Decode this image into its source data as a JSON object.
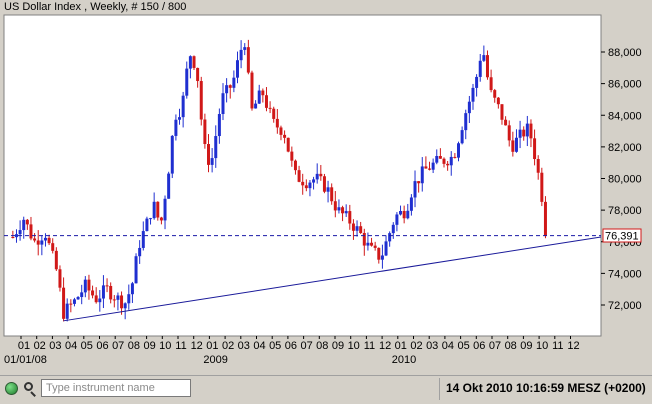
{
  "window": {
    "title": "US Dollar Index , Weekly, # 150 / 800"
  },
  "statusbar": {
    "search_placeholder": "Type instrument name",
    "datetime": "14 Okt 2010 10:16:59  MESZ (+0200)"
  },
  "colors": {
    "up_candle": "#1f2fd0",
    "down_candle": "#d01818",
    "trendline": "#1a1a9a",
    "current_price_line": "#1a1aa8",
    "current_price_label_border": "#d01818",
    "background": "#ffffff",
    "frame": "#d4d0c8"
  },
  "chart_data": {
    "type": "candlestick",
    "instrument": "US Dollar Index",
    "timeframe": "Weekly",
    "ylim": [
      70.5,
      89.5
    ],
    "y_ticks": [
      "72,000",
      "74,000",
      "76,000",
      "78,000",
      "80,000",
      "82,000",
      "84,000",
      "86,000",
      "88,000"
    ],
    "y_tick_values": [
      72,
      74,
      76,
      78,
      80,
      82,
      84,
      86,
      88
    ],
    "x_month_labels": [
      "01",
      "02",
      "03",
      "04",
      "05",
      "06",
      "07",
      "08",
      "09",
      "10",
      "11",
      "12",
      "01",
      "02",
      "03",
      "04",
      "05",
      "06",
      "07",
      "08",
      "09",
      "10",
      "11",
      "12",
      "01",
      "02",
      "03",
      "04",
      "05",
      "06",
      "07",
      "08",
      "09",
      "10",
      "11",
      "12"
    ],
    "x_year_labels": [
      {
        "label": "01/01/08",
        "month_index": 0
      },
      {
        "label": "2009",
        "month_index": 12
      },
      {
        "label": "2010",
        "month_index": 24
      }
    ],
    "x_range_months": [
      "2007-12",
      "2010-12"
    ],
    "current_price": 76.391,
    "current_price_label": "76,391",
    "trendline": {
      "from": {
        "date": "2008-03-17",
        "value": 71.0
      },
      "to": {
        "date": "2010-10-14",
        "value": 76.3
      }
    },
    "price_path": [
      [
        "2007-12-10",
        76.3
      ],
      [
        "2007-12-31",
        77.5
      ],
      [
        "2008-01-21",
        76.0
      ],
      [
        "2008-02-11",
        76.6
      ],
      [
        "2008-03-03",
        74.2
      ],
      [
        "2008-03-17",
        71.5
      ],
      [
        "2008-04-07",
        72.2
      ],
      [
        "2008-04-28",
        73.2
      ],
      [
        "2008-05-19",
        72.4
      ],
      [
        "2008-06-09",
        73.0
      ],
      [
        "2008-06-30",
        72.4
      ],
      [
        "2008-07-14",
        72.1
      ],
      [
        "2008-07-28",
        73.2
      ],
      [
        "2008-08-11",
        75.8
      ],
      [
        "2008-08-25",
        77.0
      ],
      [
        "2008-09-08",
        78.4
      ],
      [
        "2008-09-22",
        77.0
      ],
      [
        "2008-10-06",
        80.2
      ],
      [
        "2008-10-20",
        84.0
      ],
      [
        "2008-11-03",
        84.5
      ],
      [
        "2008-11-17",
        88.0
      ],
      [
        "2008-12-01",
        87.0
      ],
      [
        "2008-12-15",
        82.0
      ],
      [
        "2008-12-29",
        80.8
      ],
      [
        "2009-01-19",
        85.0
      ],
      [
        "2009-02-09",
        86.0
      ],
      [
        "2009-03-02",
        89.0
      ],
      [
        "2009-03-16",
        84.2
      ],
      [
        "2009-04-06",
        85.5
      ],
      [
        "2009-04-27",
        83.5
      ],
      [
        "2009-05-18",
        83.0
      ],
      [
        "2009-06-08",
        80.2
      ],
      [
        "2009-06-29",
        79.8
      ],
      [
        "2009-07-20",
        80.0
      ],
      [
        "2009-08-10",
        79.4
      ],
      [
        "2009-08-31",
        78.0
      ],
      [
        "2009-09-21",
        77.4
      ],
      [
        "2009-10-12",
        76.6
      ],
      [
        "2009-11-02",
        75.5
      ],
      [
        "2009-11-23",
        75.0
      ],
      [
        "2009-12-07",
        76.3
      ],
      [
        "2009-12-21",
        77.6
      ],
      [
        "2010-01-11",
        78.0
      ],
      [
        "2010-01-25",
        79.5
      ],
      [
        "2010-02-15",
        80.5
      ],
      [
        "2010-03-08",
        81.0
      ],
      [
        "2010-03-29",
        81.2
      ],
      [
        "2010-04-12",
        81.4
      ],
      [
        "2010-05-03",
        84.0
      ],
      [
        "2010-05-24",
        86.0
      ],
      [
        "2010-06-07",
        88.4
      ],
      [
        "2010-06-21",
        85.5
      ],
      [
        "2010-07-12",
        84.2
      ],
      [
        "2010-08-02",
        82.0
      ],
      [
        "2010-08-23",
        82.8
      ],
      [
        "2010-09-06",
        83.2
      ],
      [
        "2010-09-20",
        81.0
      ],
      [
        "2010-10-04",
        78.2
      ],
      [
        "2010-10-14",
        76.39
      ]
    ]
  }
}
